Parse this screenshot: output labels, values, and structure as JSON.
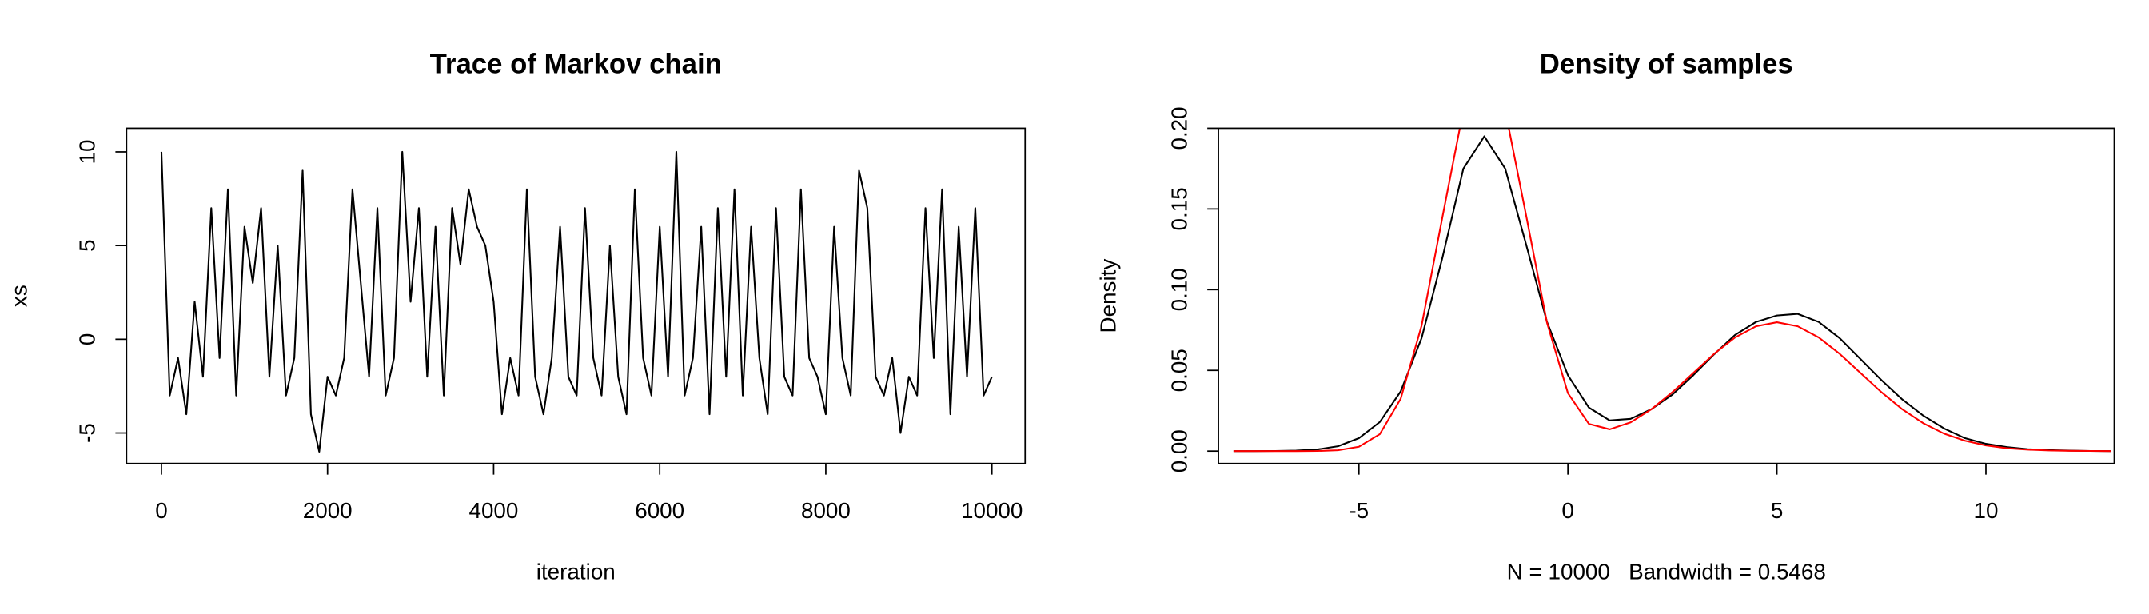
{
  "chart_data": [
    {
      "type": "line",
      "title": "Trace of Markov chain",
      "xlabel": "iteration",
      "ylabel": "xs",
      "x": [
        0,
        100,
        200,
        300,
        400,
        500,
        600,
        700,
        800,
        900,
        1000,
        1100,
        1200,
        1300,
        1400,
        1500,
        1600,
        1700,
        1800,
        1900,
        2000,
        2100,
        2200,
        2300,
        2400,
        2500,
        2600,
        2700,
        2800,
        2900,
        3000,
        3100,
        3200,
        3300,
        3400,
        3500,
        3600,
        3700,
        3800,
        3900,
        4000,
        4100,
        4200,
        4300,
        4400,
        4500,
        4600,
        4700,
        4800,
        4900,
        5000,
        5100,
        5200,
        5300,
        5400,
        5500,
        5600,
        5700,
        5800,
        5900,
        6000,
        6100,
        6200,
        6300,
        6400,
        6500,
        6600,
        6700,
        6800,
        6900,
        7000,
        7100,
        7200,
        7300,
        7400,
        7500,
        7600,
        7700,
        7800,
        7900,
        8000,
        8100,
        8200,
        8300,
        8400,
        8500,
        8600,
        8700,
        8800,
        8900,
        9000,
        9100,
        9200,
        9300,
        9400,
        9500,
        9600,
        9700,
        9800,
        9900,
        10000
      ],
      "series": [
        {
          "color": "#000000",
          "values": [
            10,
            -3,
            -1,
            -4,
            2,
            -2,
            7,
            -1,
            8,
            -3,
            6,
            3,
            7,
            -2,
            5,
            -3,
            -1,
            9,
            -4,
            -6,
            -2,
            -3,
            -1,
            8,
            3,
            -2,
            7,
            -3,
            -1,
            10,
            2,
            7,
            -2,
            6,
            -3,
            7,
            4,
            8,
            6,
            5,
            2,
            -4,
            -1,
            -3,
            8,
            -2,
            -4,
            -1,
            6,
            -2,
            -3,
            7,
            -1,
            -3,
            5,
            -2,
            -4,
            8,
            -1,
            -3,
            6,
            -2,
            10,
            -3,
            -1,
            6,
            -4,
            7,
            -2,
            8,
            -3,
            6,
            -1,
            -4,
            7,
            -2,
            -3,
            8,
            -1,
            -2,
            -4,
            6,
            -1,
            -3,
            9,
            7,
            -2,
            -3,
            -1,
            -5,
            -2,
            -3,
            7,
            -1,
            8,
            -4,
            6,
            -2,
            7,
            -3,
            -2
          ]
        }
      ],
      "xlim": [
        -420,
        10400
      ],
      "ylim": [
        -6.63,
        11.26
      ],
      "xticks": [
        0,
        2000,
        4000,
        6000,
        8000,
        10000
      ],
      "yticks": [
        -5,
        0,
        5,
        10
      ]
    },
    {
      "type": "line",
      "title": "Density of samples",
      "xlabel": "N = 10000   Bandwidth = 0.5468",
      "ylabel": "Density",
      "x": [
        -8,
        -7.5,
        -7,
        -6.5,
        -6,
        -5.5,
        -5,
        -4.5,
        -4,
        -3.5,
        -3,
        -2.5,
        -2,
        -1.5,
        -1,
        -0.5,
        0,
        0.5,
        1,
        1.5,
        2,
        2.5,
        3,
        3.5,
        4,
        4.5,
        5,
        5.5,
        6,
        6.5,
        7,
        7.5,
        8,
        8.5,
        9,
        9.5,
        10,
        10.5,
        11,
        11.5,
        12,
        12.5,
        13
      ],
      "series": [
        {
          "color": "#000000",
          "values": [
            0,
            0,
            0.0001,
            0.0003,
            0.001,
            0.003,
            0.008,
            0.018,
            0.037,
            0.07,
            0.12,
            0.175,
            0.195,
            0.175,
            0.128,
            0.08,
            0.047,
            0.027,
            0.019,
            0.02,
            0.026,
            0.035,
            0.047,
            0.06,
            0.072,
            0.08,
            0.084,
            0.085,
            0.08,
            0.07,
            0.057,
            0.044,
            0.032,
            0.022,
            0.014,
            0.008,
            0.0045,
            0.0025,
            0.0012,
            0.0006,
            0.0003,
            0.0001,
            0
          ]
        },
        {
          "color": "#ff0000",
          "values": [
            0,
            0,
            0,
            1e-05,
            8e-05,
            0.00052,
            0.0027,
            0.0105,
            0.0324,
            0.0777,
            0.1452,
            0.2113,
            0.2394,
            0.2113,
            0.1461,
            0.0795,
            0.0359,
            0.0169,
            0.0135,
            0.0178,
            0.026,
            0.0365,
            0.0484,
            0.0603,
            0.0704,
            0.0773,
            0.0798,
            0.0773,
            0.0704,
            0.0603,
            0.0484,
            0.0365,
            0.0259,
            0.0173,
            0.0108,
            0.0064,
            0.0035,
            0.0018,
            0.0009,
            0.0004,
            0.0002,
            0.0001,
            0
          ]
        }
      ],
      "xlim": [
        -8.36,
        13.07
      ],
      "ylim": [
        -0.0077,
        0.2
      ],
      "xticks": [
        -5,
        0,
        5,
        10
      ],
      "yticks": [
        {
          "value": 0,
          "label": "0.00"
        },
        {
          "value": 0.05,
          "label": "0.05"
        },
        {
          "value": 0.1,
          "label": "0.10"
        },
        {
          "value": 0.15,
          "label": "0.15"
        },
        {
          "value": 0.2,
          "label": "0.20"
        }
      ]
    }
  ]
}
